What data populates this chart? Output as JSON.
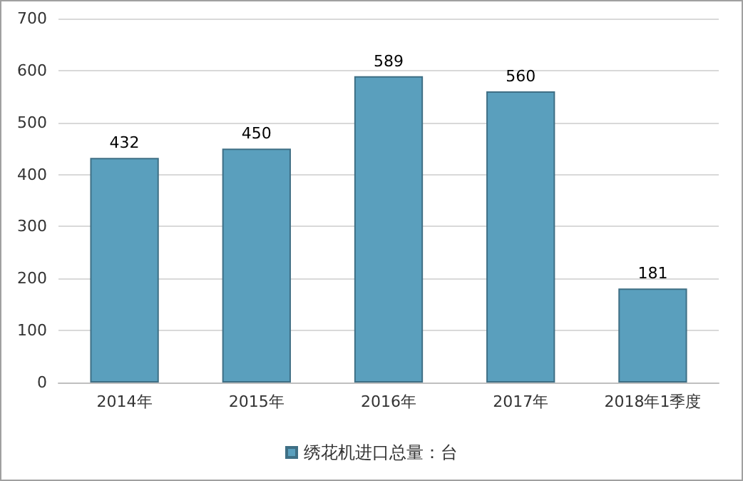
{
  "chart_data": {
    "type": "bar",
    "categories": [
      "2014年",
      "2015年",
      "2016年",
      "2017年",
      "2018年1季度"
    ],
    "series": [
      {
        "name": "绣花机进口总量：台",
        "color": "#5a9fbd",
        "values": [
          432,
          450,
          589,
          560,
          181
        ]
      }
    ],
    "ylim": [
      0,
      700
    ],
    "yticks": [
      0,
      100,
      200,
      300,
      400,
      500,
      600,
      700
    ],
    "grid": "y",
    "legend": "bottom",
    "data_labels": true
  }
}
